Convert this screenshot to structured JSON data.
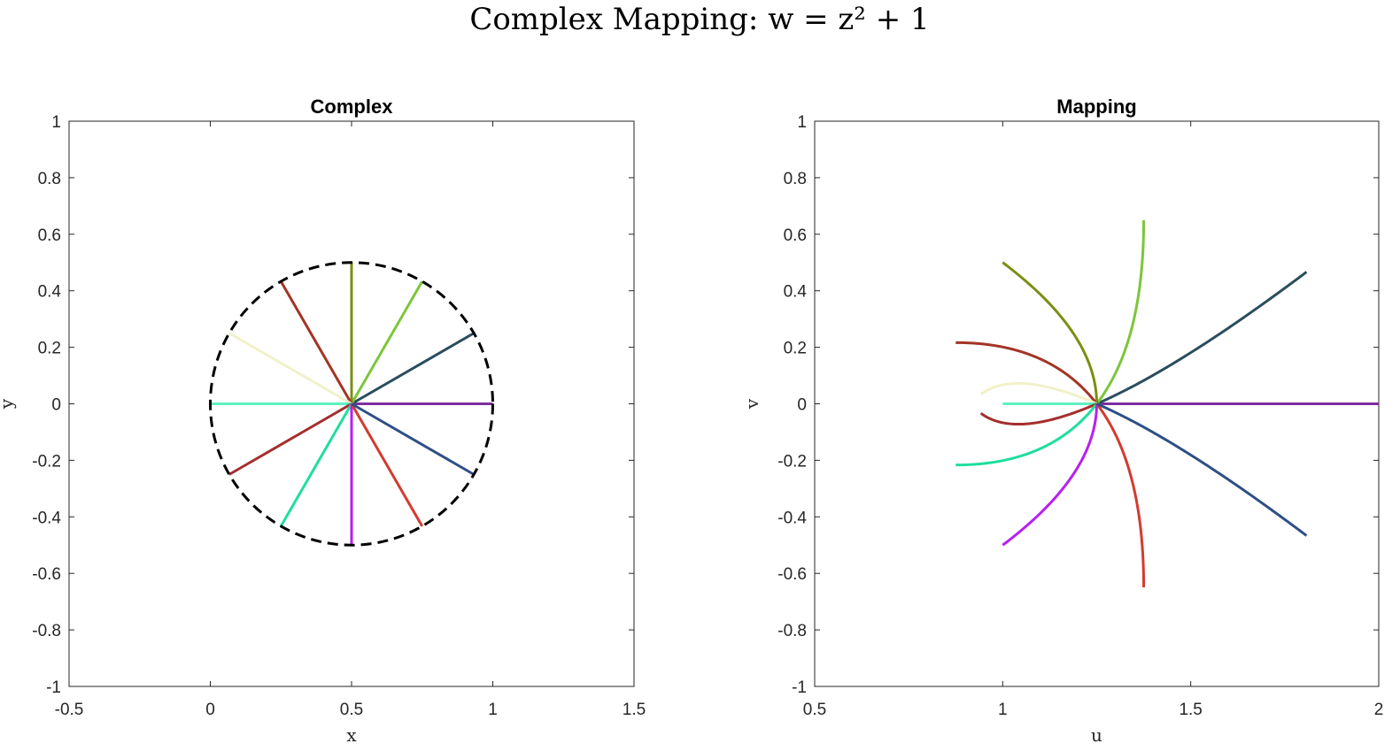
{
  "figure": {
    "title": "Complex Mapping: w = z² + 1"
  },
  "chart_data": [
    {
      "type": "line",
      "title": "Complex",
      "xlabel": "x",
      "ylabel": "y",
      "xlim": [
        -0.5,
        1.5
      ],
      "ylim": [
        -1,
        1
      ],
      "xticks": [
        -0.5,
        0,
        0.5,
        1,
        1.5
      ],
      "yticks": [
        -1,
        -0.8,
        -0.6,
        -0.4,
        -0.2,
        0,
        0.2,
        0.4,
        0.6,
        0.8,
        1
      ],
      "grid": false,
      "circle": {
        "center": [
          0.5,
          0
        ],
        "radius": 0.5,
        "style": "dashed",
        "color": "#000000"
      },
      "series": [
        {
          "color": "#7e2fa0",
          "x": [
            0.5,
            1.0
          ],
          "y": [
            0,
            0
          ]
        },
        {
          "color": "#2a4d5e",
          "x": [
            0.5,
            0.933
          ],
          "y": [
            0,
            0.25
          ]
        },
        {
          "color": "#7cc63a",
          "x": [
            0.5,
            0.75
          ],
          "y": [
            0,
            0.433
          ]
        },
        {
          "color": "#7a8f12",
          "x": [
            0.5,
            0.5
          ],
          "y": [
            0,
            0.5
          ]
        },
        {
          "color": "#a33425",
          "x": [
            0.5,
            0.25
          ],
          "y": [
            0,
            0.433
          ]
        },
        {
          "color": "#f1f1c9",
          "x": [
            0.5,
            0.067
          ],
          "y": [
            0,
            0.25
          ]
        },
        {
          "color": "#5ef0c2",
          "x": [
            0.5,
            0.0
          ],
          "y": [
            0,
            0
          ]
        },
        {
          "color": "#a52e2e",
          "x": [
            0.5,
            0.067
          ],
          "y": [
            0,
            -0.25
          ]
        },
        {
          "color": "#1ede9e",
          "x": [
            0.5,
            0.25
          ],
          "y": [
            0,
            -0.433
          ]
        },
        {
          "color": "#b81ff2",
          "x": [
            0.5,
            0.5
          ],
          "y": [
            0,
            -0.5
          ]
        },
        {
          "color": "#d43a2f",
          "x": [
            0.5,
            0.75
          ],
          "y": [
            0,
            -0.433
          ]
        },
        {
          "color": "#2e4f86",
          "x": [
            0.5,
            0.933
          ],
          "y": [
            0,
            -0.25
          ]
        }
      ]
    },
    {
      "type": "line",
      "title": "Mapping",
      "xlabel": "u",
      "ylabel": "v",
      "xlim": [
        0.5,
        2
      ],
      "ylim": [
        -1,
        1
      ],
      "xticks": [
        0.5,
        1,
        1.5,
        2
      ],
      "yticks": [
        -1,
        -0.8,
        -0.6,
        -0.4,
        -0.2,
        0,
        0.2,
        0.4,
        0.6,
        0.8,
        1
      ],
      "grid": false,
      "mapping": "w = z^2 + 1 applied to the rays of the left panel",
      "series": [
        {
          "color": "#7e2fa0",
          "z_start": [
            0.5,
            0
          ],
          "z_end": [
            1.0,
            0
          ]
        },
        {
          "color": "#2a4d5e",
          "z_start": [
            0.5,
            0
          ],
          "z_end": [
            0.933,
            0.25
          ]
        },
        {
          "color": "#7cc63a",
          "z_start": [
            0.5,
            0
          ],
          "z_end": [
            0.75,
            0.433
          ]
        },
        {
          "color": "#7a8f12",
          "z_start": [
            0.5,
            0
          ],
          "z_end": [
            0.5,
            0.5
          ]
        },
        {
          "color": "#a33425",
          "z_start": [
            0.5,
            0
          ],
          "z_end": [
            0.25,
            0.433
          ]
        },
        {
          "color": "#f1f1c9",
          "z_start": [
            0.5,
            0
          ],
          "z_end": [
            0.067,
            0.25
          ]
        },
        {
          "color": "#5ef0c2",
          "z_start": [
            0.5,
            0
          ],
          "z_end": [
            0.0,
            0
          ]
        },
        {
          "color": "#a52e2e",
          "z_start": [
            0.5,
            0
          ],
          "z_end": [
            0.067,
            -0.25
          ]
        },
        {
          "color": "#1ede9e",
          "z_start": [
            0.5,
            0
          ],
          "z_end": [
            0.25,
            -0.433
          ]
        },
        {
          "color": "#b81ff2",
          "z_start": [
            0.5,
            0
          ],
          "z_end": [
            0.5,
            -0.5
          ]
        },
        {
          "color": "#d43a2f",
          "z_start": [
            0.5,
            0
          ],
          "z_end": [
            0.75,
            -0.433
          ]
        },
        {
          "color": "#2e4f86",
          "z_start": [
            0.5,
            0
          ],
          "z_end": [
            0.933,
            -0.25
          ]
        }
      ]
    }
  ]
}
